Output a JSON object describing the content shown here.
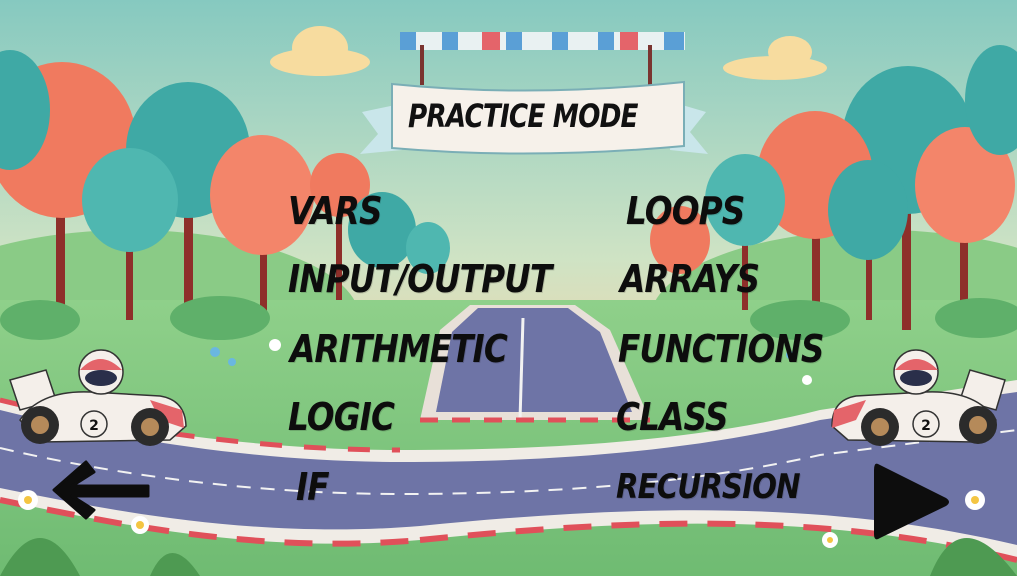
{
  "header": {
    "title": "PRACTICE MODE"
  },
  "menu": {
    "left": [
      {
        "label": "VARS"
      },
      {
        "label": "INPUT/OUTPUT"
      },
      {
        "label": "ARITHMETIC"
      },
      {
        "label": "LOGIC"
      },
      {
        "label": "IF"
      }
    ],
    "right": [
      {
        "label": "LOOPS"
      },
      {
        "label": "ARRAYS"
      },
      {
        "label": "FUNCTIONS"
      },
      {
        "label": "CLASS"
      },
      {
        "label": "RECURSION"
      }
    ]
  },
  "cars": {
    "left_number": "2",
    "right_number": "2"
  },
  "navigation": {
    "back_icon": "arrow-left-icon",
    "next_icon": "play-triangle-icon"
  },
  "colors": {
    "sky_top": "#7fc6c2",
    "sky_bottom": "#f6cfa0",
    "grass": "#7cc47a",
    "road": "#6e74a6",
    "tree_red": "#f07a5f",
    "tree_teal": "#3fa9a5",
    "text": "#0d0d0d"
  }
}
